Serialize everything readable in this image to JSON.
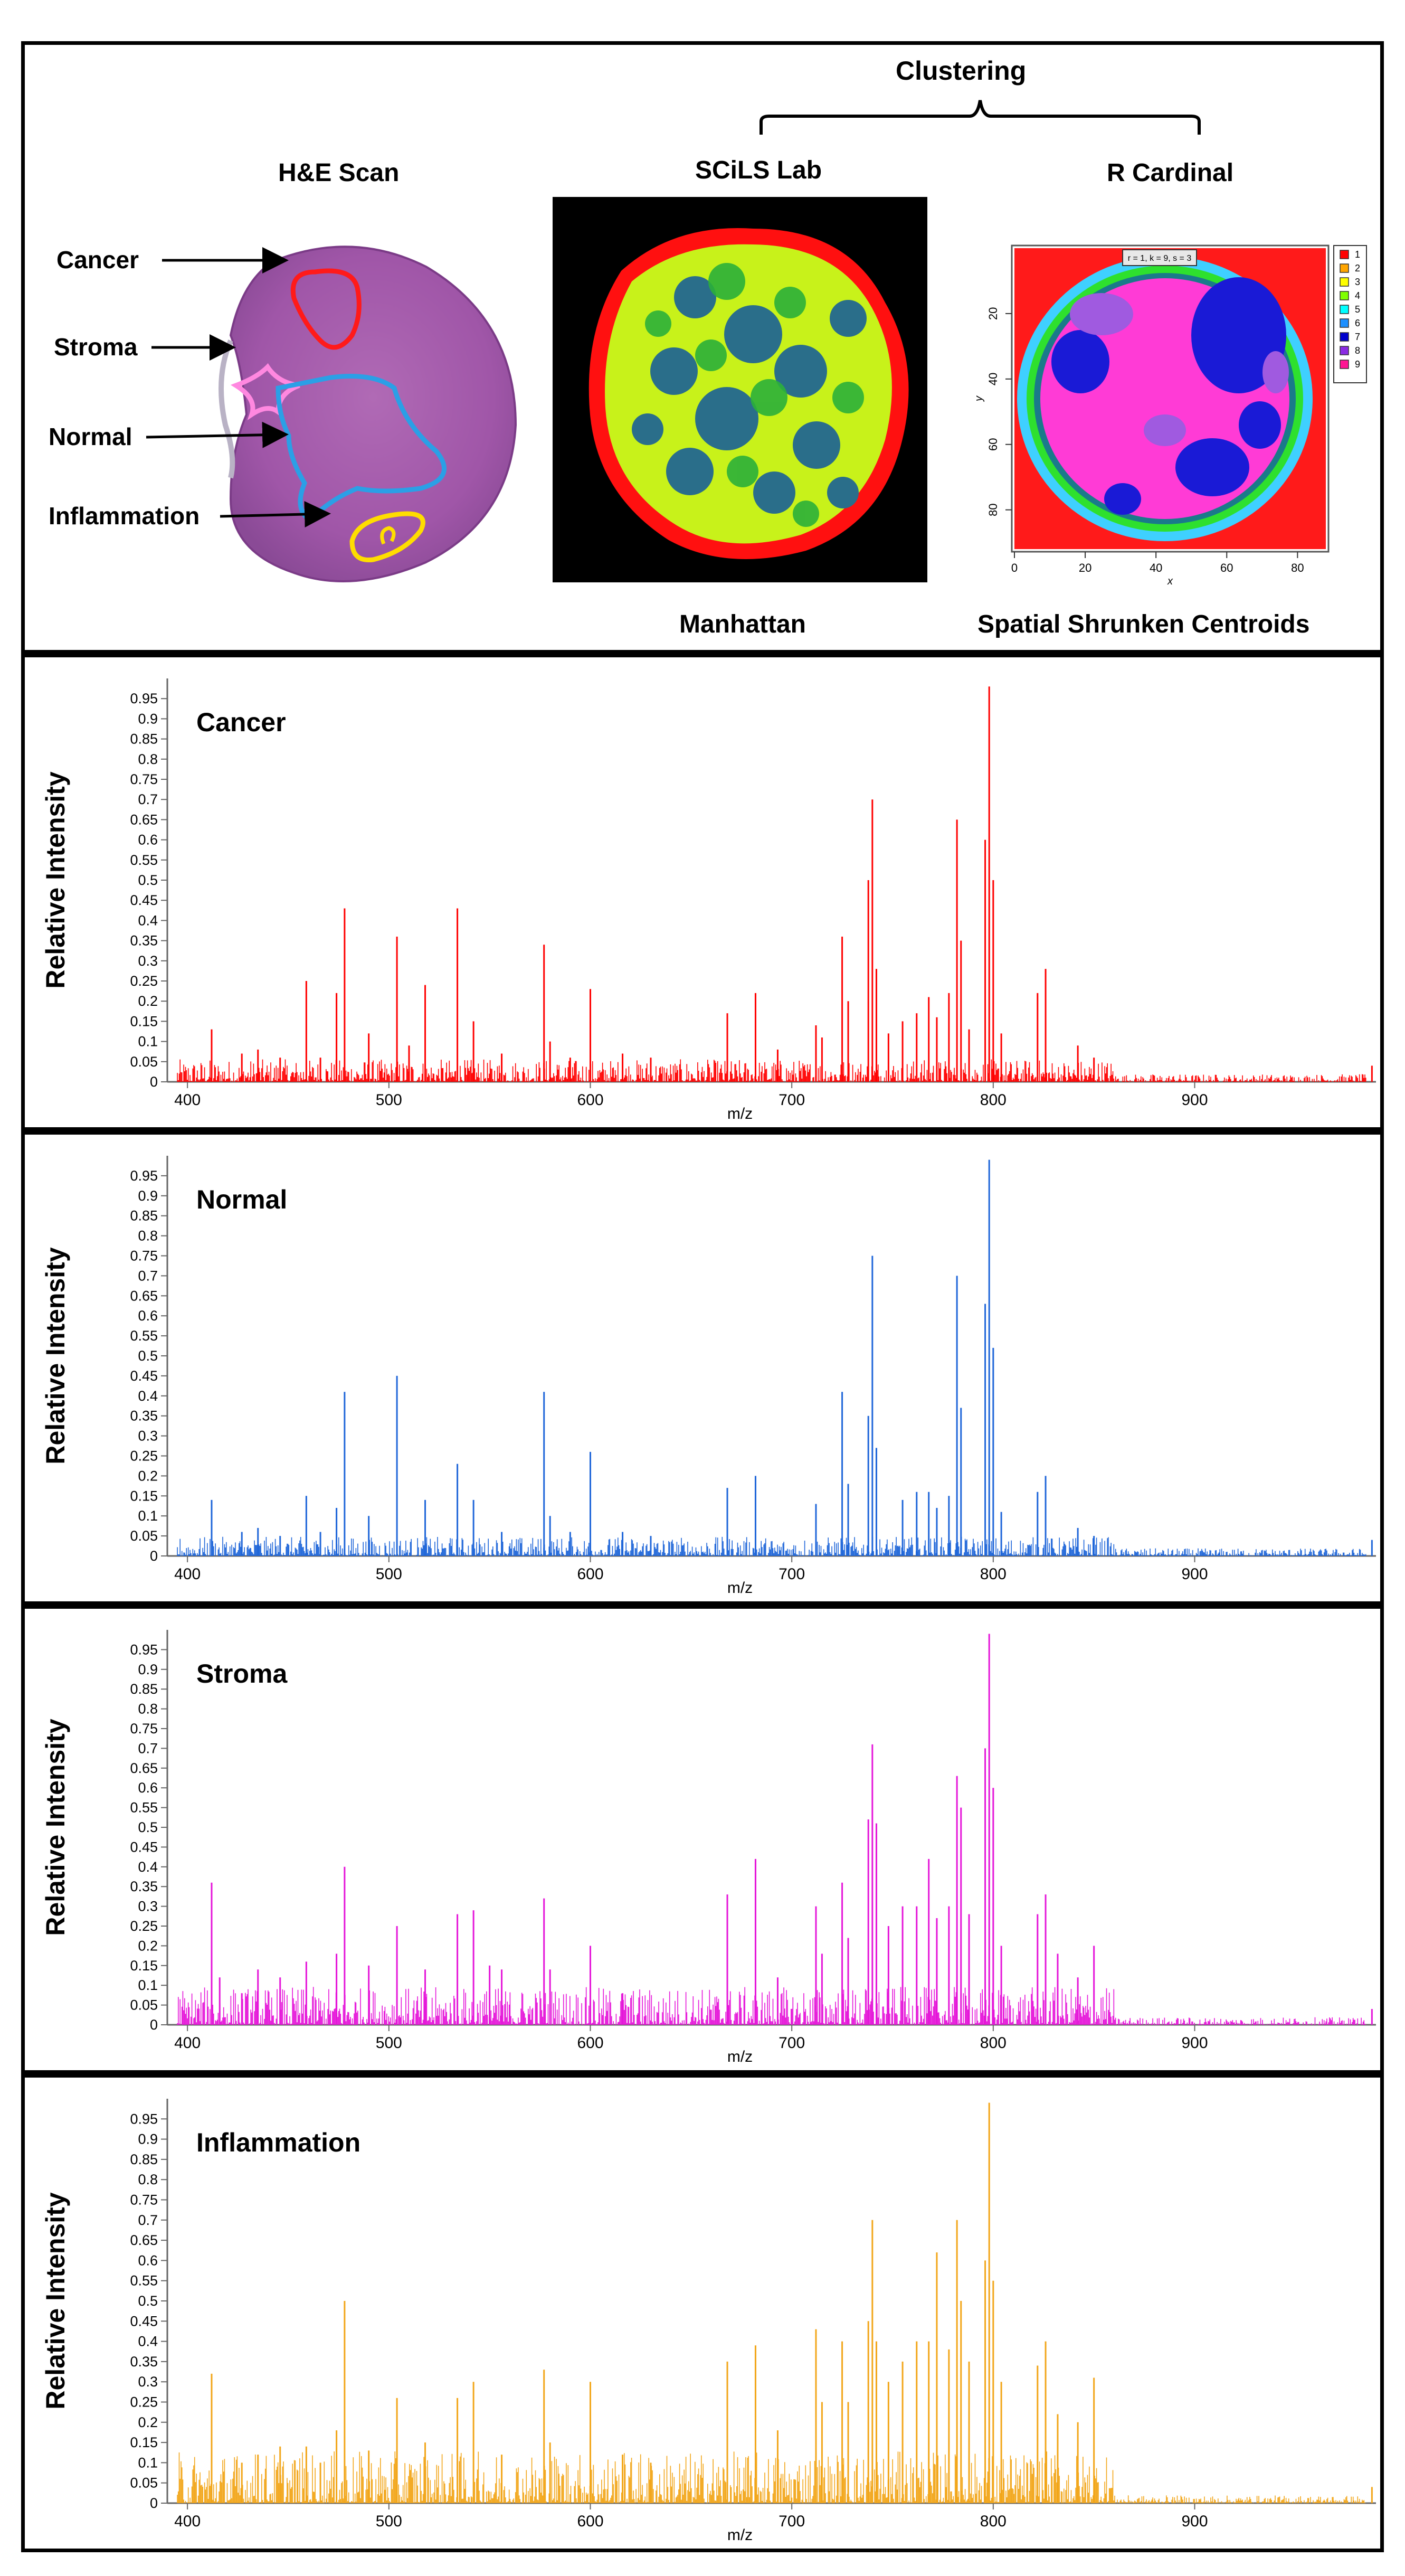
{
  "header": {
    "clustering": "Clustering",
    "he_scan": "H&E Scan",
    "scils_lab": "SCiLS Lab",
    "r_cardinal": "R Cardinal",
    "manhattan": "Manhattan",
    "spatial_shrunken": "Spatial Shrunken Centroids",
    "labels": [
      "Cancer",
      "Stroma",
      "Normal",
      "Inflammation"
    ],
    "cardinal_axis": {
      "xlabel": "x",
      "ylabel": "y",
      "xticks": [
        "0",
        "20",
        "40",
        "60",
        "80"
      ],
      "yticks": [
        "20",
        "40",
        "60",
        "80"
      ]
    },
    "cardinal_legend": [
      "1",
      "2",
      "3",
      "4",
      "5",
      "6",
      "7",
      "8",
      "9"
    ],
    "cardinal_legend_colors": [
      "#ff0000",
      "#ffa500",
      "#ffff00",
      "#7fff00",
      "#00ffff",
      "#1e90ff",
      "#0000cd",
      "#8a2be2",
      "#ff1493"
    ],
    "cardinal_title": "r = 1, k = 9, s = 3"
  },
  "chart_data": [
    {
      "type": "line",
      "name": "Cancer",
      "color": "#ff0000",
      "xlabel": "m/z",
      "ylabel": "Relative Intensity",
      "xlim": [
        390,
        990
      ],
      "ylim": [
        0,
        1
      ],
      "xticks": [
        400,
        500,
        600,
        700,
        800,
        900
      ],
      "yticks": [
        "0",
        "0.05",
        "0.1",
        "0.15",
        "0.2",
        "0.25",
        "0.3",
        "0.35",
        "0.4",
        "0.45",
        "0.5",
        "0.55",
        "0.6",
        "0.65",
        "0.7",
        "0.75",
        "0.8",
        "0.85",
        "0.9",
        "0.95"
      ],
      "peaks": [
        [
          412,
          0.13
        ],
        [
          427,
          0.07
        ],
        [
          435,
          0.08
        ],
        [
          446,
          0.06
        ],
        [
          459,
          0.25
        ],
        [
          466,
          0.06
        ],
        [
          474,
          0.22
        ],
        [
          478,
          0.43
        ],
        [
          490,
          0.12
        ],
        [
          504,
          0.36
        ],
        [
          510,
          0.09
        ],
        [
          518,
          0.24
        ],
        [
          534,
          0.43
        ],
        [
          542,
          0.15
        ],
        [
          556,
          0.07
        ],
        [
          577,
          0.34
        ],
        [
          580,
          0.1
        ],
        [
          590,
          0.06
        ],
        [
          600,
          0.23
        ],
        [
          616,
          0.07
        ],
        [
          630,
          0.06
        ],
        [
          668,
          0.17
        ],
        [
          682,
          0.22
        ],
        [
          693,
          0.08
        ],
        [
          712,
          0.14
        ],
        [
          715,
          0.11
        ],
        [
          725,
          0.36
        ],
        [
          728,
          0.2
        ],
        [
          738,
          0.5
        ],
        [
          740,
          0.7
        ],
        [
          742,
          0.28
        ],
        [
          748,
          0.12
        ],
        [
          755,
          0.15
        ],
        [
          762,
          0.17
        ],
        [
          768,
          0.21
        ],
        [
          772,
          0.16
        ],
        [
          778,
          0.22
        ],
        [
          782,
          0.65
        ],
        [
          784,
          0.35
        ],
        [
          788,
          0.13
        ],
        [
          796,
          0.6
        ],
        [
          798,
          0.98
        ],
        [
          800,
          0.5
        ],
        [
          804,
          0.12
        ],
        [
          822,
          0.22
        ],
        [
          826,
          0.28
        ],
        [
          842,
          0.09
        ],
        [
          850,
          0.06
        ],
        [
          988,
          0.04
        ]
      ],
      "noise_level": 0.035,
      "noise_range": [
        395,
        860
      ]
    },
    {
      "type": "line",
      "name": "Normal",
      "color": "#1f66d9",
      "xlabel": "m/z",
      "ylabel": "Relative Intensity",
      "xlim": [
        390,
        990
      ],
      "ylim": [
        0,
        1
      ],
      "xticks": [
        400,
        500,
        600,
        700,
        800,
        900
      ],
      "yticks": [
        "0",
        "0.05",
        "0.1",
        "0.15",
        "0.2",
        "0.25",
        "0.3",
        "0.35",
        "0.4",
        "0.45",
        "0.5",
        "0.55",
        "0.6",
        "0.65",
        "0.7",
        "0.75",
        "0.8",
        "0.85",
        "0.9",
        "0.95"
      ],
      "peaks": [
        [
          412,
          0.14
        ],
        [
          427,
          0.06
        ],
        [
          435,
          0.07
        ],
        [
          446,
          0.05
        ],
        [
          459,
          0.15
        ],
        [
          466,
          0.06
        ],
        [
          474,
          0.12
        ],
        [
          478,
          0.41
        ],
        [
          490,
          0.1
        ],
        [
          504,
          0.45
        ],
        [
          518,
          0.14
        ],
        [
          534,
          0.23
        ],
        [
          542,
          0.14
        ],
        [
          556,
          0.06
        ],
        [
          577,
          0.41
        ],
        [
          580,
          0.1
        ],
        [
          590,
          0.06
        ],
        [
          600,
          0.26
        ],
        [
          616,
          0.06
        ],
        [
          630,
          0.05
        ],
        [
          668,
          0.17
        ],
        [
          682,
          0.2
        ],
        [
          712,
          0.13
        ],
        [
          725,
          0.41
        ],
        [
          728,
          0.18
        ],
        [
          738,
          0.35
        ],
        [
          740,
          0.75
        ],
        [
          742,
          0.27
        ],
        [
          755,
          0.14
        ],
        [
          762,
          0.16
        ],
        [
          768,
          0.16
        ],
        [
          772,
          0.12
        ],
        [
          778,
          0.15
        ],
        [
          782,
          0.7
        ],
        [
          784,
          0.37
        ],
        [
          796,
          0.63
        ],
        [
          798,
          0.99
        ],
        [
          800,
          0.52
        ],
        [
          804,
          0.11
        ],
        [
          822,
          0.16
        ],
        [
          826,
          0.2
        ],
        [
          842,
          0.07
        ],
        [
          850,
          0.05
        ],
        [
          988,
          0.04
        ]
      ],
      "noise_level": 0.03,
      "noise_range": [
        395,
        860
      ]
    },
    {
      "type": "line",
      "name": "Stroma",
      "color": "#e516d9",
      "xlabel": "m/z",
      "ylabel": "Relative Intensity",
      "xlim": [
        390,
        990
      ],
      "ylim": [
        0,
        1
      ],
      "xticks": [
        400,
        500,
        600,
        700,
        800,
        900
      ],
      "yticks": [
        "0",
        "0.05",
        "0.1",
        "0.15",
        "0.2",
        "0.25",
        "0.3",
        "0.35",
        "0.4",
        "0.45",
        "0.5",
        "0.55",
        "0.6",
        "0.65",
        "0.7",
        "0.75",
        "0.8",
        "0.85",
        "0.9",
        "0.95"
      ],
      "peaks": [
        [
          412,
          0.36
        ],
        [
          416,
          0.12
        ],
        [
          427,
          0.08
        ],
        [
          435,
          0.14
        ],
        [
          446,
          0.12
        ],
        [
          459,
          0.16
        ],
        [
          474,
          0.18
        ],
        [
          478,
          0.4
        ],
        [
          490,
          0.15
        ],
        [
          504,
          0.25
        ],
        [
          518,
          0.14
        ],
        [
          534,
          0.28
        ],
        [
          542,
          0.29
        ],
        [
          550,
          0.15
        ],
        [
          556,
          0.14
        ],
        [
          577,
          0.32
        ],
        [
          580,
          0.14
        ],
        [
          600,
          0.2
        ],
        [
          616,
          0.08
        ],
        [
          668,
          0.33
        ],
        [
          682,
          0.42
        ],
        [
          693,
          0.12
        ],
        [
          712,
          0.3
        ],
        [
          715,
          0.18
        ],
        [
          725,
          0.36
        ],
        [
          728,
          0.22
        ],
        [
          738,
          0.52
        ],
        [
          740,
          0.71
        ],
        [
          742,
          0.51
        ],
        [
          748,
          0.25
        ],
        [
          755,
          0.3
        ],
        [
          762,
          0.3
        ],
        [
          768,
          0.42
        ],
        [
          772,
          0.27
        ],
        [
          778,
          0.3
        ],
        [
          782,
          0.63
        ],
        [
          784,
          0.55
        ],
        [
          788,
          0.28
        ],
        [
          796,
          0.7
        ],
        [
          798,
          0.99
        ],
        [
          800,
          0.6
        ],
        [
          804,
          0.2
        ],
        [
          822,
          0.28
        ],
        [
          826,
          0.33
        ],
        [
          832,
          0.18
        ],
        [
          842,
          0.12
        ],
        [
          850,
          0.2
        ],
        [
          988,
          0.04
        ]
      ],
      "noise_level": 0.06,
      "noise_range": [
        395,
        860
      ]
    },
    {
      "type": "line",
      "name": "Inflammation",
      "color": "#f2a61a",
      "xlabel": "m/z",
      "ylabel": "Relative Intensity",
      "xlim": [
        390,
        990
      ],
      "ylim": [
        0,
        1
      ],
      "xticks": [
        400,
        500,
        600,
        700,
        800,
        900
      ],
      "yticks": [
        "0",
        "0.05",
        "0.1",
        "0.15",
        "0.2",
        "0.25",
        "0.3",
        "0.35",
        "0.4",
        "0.45",
        "0.5",
        "0.55",
        "0.6",
        "0.65",
        "0.7",
        "0.75",
        "0.8",
        "0.85",
        "0.9",
        "0.95"
      ],
      "peaks": [
        [
          412,
          0.32
        ],
        [
          427,
          0.1
        ],
        [
          435,
          0.12
        ],
        [
          446,
          0.14
        ],
        [
          459,
          0.14
        ],
        [
          466,
          0.1
        ],
        [
          474,
          0.18
        ],
        [
          478,
          0.5
        ],
        [
          490,
          0.13
        ],
        [
          504,
          0.26
        ],
        [
          518,
          0.15
        ],
        [
          534,
          0.26
        ],
        [
          542,
          0.3
        ],
        [
          556,
          0.12
        ],
        [
          577,
          0.33
        ],
        [
          580,
          0.15
        ],
        [
          600,
          0.3
        ],
        [
          616,
          0.12
        ],
        [
          630,
          0.1
        ],
        [
          668,
          0.35
        ],
        [
          682,
          0.39
        ],
        [
          693,
          0.18
        ],
        [
          712,
          0.43
        ],
        [
          715,
          0.25
        ],
        [
          725,
          0.4
        ],
        [
          728,
          0.25
        ],
        [
          738,
          0.45
        ],
        [
          740,
          0.7
        ],
        [
          742,
          0.4
        ],
        [
          748,
          0.3
        ],
        [
          755,
          0.35
        ],
        [
          762,
          0.4
        ],
        [
          768,
          0.4
        ],
        [
          772,
          0.62
        ],
        [
          778,
          0.38
        ],
        [
          782,
          0.7
        ],
        [
          784,
          0.5
        ],
        [
          788,
          0.35
        ],
        [
          796,
          0.6
        ],
        [
          798,
          0.99
        ],
        [
          800,
          0.55
        ],
        [
          804,
          0.3
        ],
        [
          822,
          0.34
        ],
        [
          826,
          0.4
        ],
        [
          832,
          0.22
        ],
        [
          842,
          0.2
        ],
        [
          850,
          0.31
        ],
        [
          988,
          0.04
        ]
      ],
      "noise_level": 0.08,
      "noise_range": [
        395,
        860
      ]
    }
  ]
}
